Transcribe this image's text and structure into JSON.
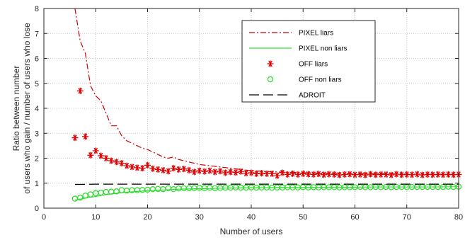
{
  "chart_data": {
    "type": "line",
    "xlabel": "Number of users",
    "ylabel_lines": [
      "Ratio between number",
      "of users who gain / number of users who lose"
    ],
    "xlim": [
      0,
      80
    ],
    "ylim": [
      0,
      8
    ],
    "xticks": [
      0,
      10,
      20,
      30,
      40,
      50,
      60,
      70,
      80
    ],
    "yticks": [
      0,
      1,
      2,
      3,
      4,
      5,
      6,
      7,
      8
    ],
    "grid": true,
    "legend_position": "top-right",
    "series": [
      {
        "name": "PIXEL liars",
        "style": "dash-dot",
        "color": "#cc0000",
        "x": [
          6,
          7,
          8,
          9,
          10,
          11,
          12,
          13,
          14,
          15,
          16,
          17,
          18,
          19,
          20,
          21,
          22,
          23,
          24,
          25,
          26,
          27,
          28,
          29,
          30,
          32,
          34,
          36,
          38,
          40,
          45,
          50,
          55,
          60,
          65,
          70,
          75,
          80
        ],
        "y": [
          8.0,
          6.7,
          6.2,
          4.9,
          4.5,
          4.3,
          3.8,
          3.3,
          3.3,
          2.9,
          2.7,
          2.6,
          2.5,
          2.4,
          2.35,
          2.25,
          2.15,
          2.05,
          2.0,
          2.05,
          1.95,
          1.9,
          1.85,
          1.8,
          1.75,
          1.7,
          1.65,
          1.6,
          1.55,
          1.5,
          1.45,
          1.42,
          1.4,
          1.38,
          1.38,
          1.36,
          1.36,
          1.35
        ]
      },
      {
        "name": "PIXEL non liars",
        "style": "solid",
        "color": "#33dd33",
        "x": [
          6,
          8,
          10,
          12,
          14,
          16,
          18,
          20,
          22,
          24,
          26,
          28,
          30,
          35,
          40,
          45,
          50,
          55,
          60,
          65,
          70,
          75,
          80
        ],
        "y": [
          0.32,
          0.4,
          0.47,
          0.54,
          0.6,
          0.64,
          0.67,
          0.7,
          0.72,
          0.74,
          0.76,
          0.77,
          0.78,
          0.8,
          0.82,
          0.83,
          0.83,
          0.84,
          0.84,
          0.85,
          0.85,
          0.85,
          0.86
        ]
      },
      {
        "name": "OFF liars",
        "style": "asterisk",
        "color": "#e00000",
        "x": [
          6,
          7,
          8,
          9,
          10,
          11,
          12,
          13,
          14,
          15,
          16,
          17,
          18,
          19,
          20,
          21,
          22,
          23,
          24,
          25,
          26,
          27,
          28,
          29,
          30,
          31,
          32,
          33,
          34,
          35,
          36,
          37,
          38,
          39,
          40,
          41,
          42,
          43,
          44,
          45,
          46,
          47,
          48,
          49,
          50,
          51,
          52,
          53,
          54,
          55,
          56,
          57,
          58,
          59,
          60,
          61,
          62,
          63,
          64,
          65,
          66,
          67,
          68,
          69,
          70,
          71,
          72,
          73,
          74,
          75,
          76,
          77,
          78,
          79,
          80
        ],
        "y": [
          2.82,
          4.7,
          2.87,
          2.12,
          2.3,
          2.1,
          2.0,
          1.9,
          1.85,
          1.8,
          1.7,
          1.65,
          1.62,
          1.6,
          1.72,
          1.58,
          1.55,
          1.52,
          1.48,
          1.6,
          1.55,
          1.57,
          1.52,
          1.45,
          1.5,
          1.47,
          1.5,
          1.45,
          1.48,
          1.42,
          1.45,
          1.43,
          1.47,
          1.4,
          1.42,
          1.38,
          1.4,
          1.38,
          1.38,
          1.3,
          1.42,
          1.35,
          1.38,
          1.35,
          1.38,
          1.36,
          1.35,
          1.37,
          1.34,
          1.36,
          1.35,
          1.33,
          1.35,
          1.36,
          1.34,
          1.35,
          1.33,
          1.36,
          1.34,
          1.35,
          1.35,
          1.33,
          1.36,
          1.34,
          1.35,
          1.34,
          1.36,
          1.33,
          1.35,
          1.34,
          1.35,
          1.34,
          1.35,
          1.34,
          1.35
        ]
      },
      {
        "name": "OFF non liars",
        "style": "circle",
        "color": "#22dd22",
        "x": [
          6,
          7,
          8,
          9,
          10,
          11,
          12,
          13,
          14,
          15,
          16,
          17,
          18,
          19,
          20,
          21,
          22,
          23,
          24,
          25,
          26,
          27,
          28,
          29,
          30,
          31,
          32,
          33,
          34,
          35,
          36,
          37,
          38,
          39,
          40,
          41,
          42,
          43,
          44,
          45,
          46,
          47,
          48,
          49,
          50,
          51,
          52,
          53,
          54,
          55,
          56,
          57,
          58,
          59,
          60,
          61,
          62,
          63,
          64,
          65,
          66,
          67,
          68,
          69,
          70,
          71,
          72,
          73,
          74,
          75,
          76,
          77,
          78,
          79,
          80
        ],
        "y": [
          0.38,
          0.42,
          0.5,
          0.55,
          0.6,
          0.62,
          0.65,
          0.66,
          0.67,
          0.72,
          0.7,
          0.72,
          0.72,
          0.73,
          0.74,
          0.76,
          0.77,
          0.76,
          0.8,
          0.76,
          0.79,
          0.8,
          0.8,
          0.8,
          0.82,
          0.8,
          0.82,
          0.8,
          0.81,
          0.82,
          0.82,
          0.83,
          0.82,
          0.82,
          0.83,
          0.82,
          0.83,
          0.83,
          0.82,
          0.83,
          0.83,
          0.84,
          0.83,
          0.83,
          0.84,
          0.83,
          0.84,
          0.83,
          0.84,
          0.84,
          0.84,
          0.83,
          0.84,
          0.84,
          0.84,
          0.85,
          0.84,
          0.84,
          0.85,
          0.84,
          0.85,
          0.84,
          0.85,
          0.85,
          0.84,
          0.85,
          0.85,
          0.85,
          0.85,
          0.85,
          0.85,
          0.85,
          0.86,
          0.85,
          0.86
        ]
      },
      {
        "name": "ADROIT",
        "style": "dashed",
        "color": "#000000",
        "x": [
          6,
          10,
          15,
          20,
          25,
          30,
          35,
          40,
          45,
          50,
          55,
          60,
          65,
          70,
          75,
          80
        ],
        "y": [
          0.95,
          0.96,
          0.96,
          0.96,
          0.96,
          0.96,
          0.96,
          0.96,
          0.96,
          0.96,
          0.96,
          0.96,
          0.96,
          0.96,
          0.96,
          0.96
        ]
      }
    ]
  }
}
